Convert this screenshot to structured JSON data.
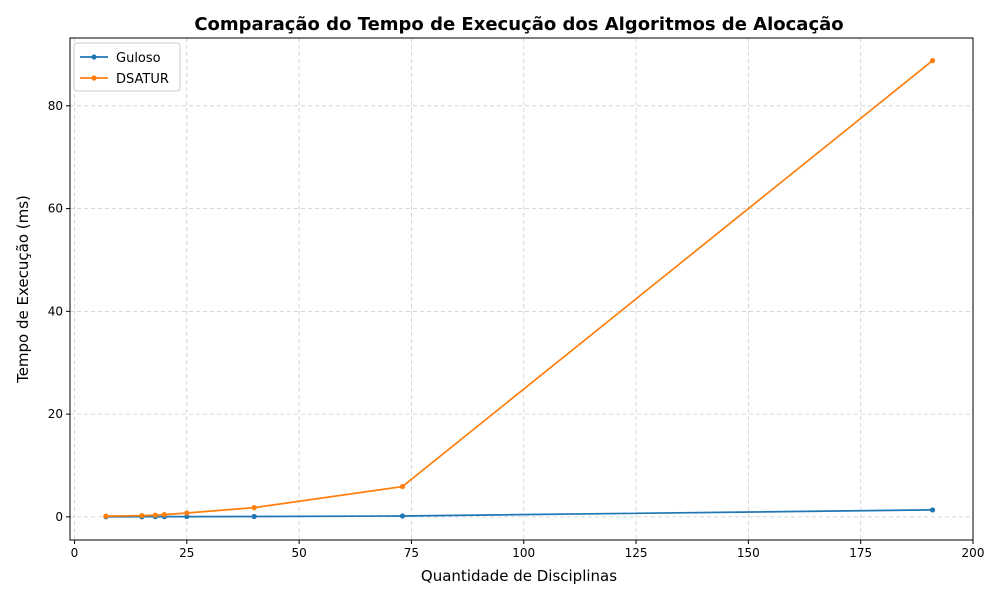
{
  "chart_data": {
    "type": "line",
    "title": "Comparação do Tempo de Execução dos Algoritmos de Alocação",
    "xlabel": "Quantidade de Disciplinas",
    "ylabel": "Tempo de Execução (ms)",
    "xlim": [
      -1,
      200
    ],
    "ylim": [
      -4.5,
      93.2
    ],
    "xticks": [
      0,
      25,
      50,
      75,
      100,
      125,
      150,
      175,
      200
    ],
    "yticks": [
      0,
      20,
      40,
      60,
      80
    ],
    "grid": true,
    "legend_position": "top-left",
    "series": [
      {
        "name": "Guloso",
        "color": "#1f77b4",
        "x": [
          7,
          15,
          18,
          20,
          25,
          40,
          73,
          191
        ],
        "y": [
          0.02,
          0.03,
          0.04,
          0.05,
          0.06,
          0.07,
          0.17,
          1.35
        ]
      },
      {
        "name": "DSATUR",
        "color": "#ff7f0e",
        "x": [
          7,
          15,
          18,
          20,
          25,
          40,
          73,
          191
        ],
        "y": [
          0.15,
          0.25,
          0.35,
          0.45,
          0.75,
          1.8,
          5.9,
          88.8
        ]
      }
    ]
  }
}
